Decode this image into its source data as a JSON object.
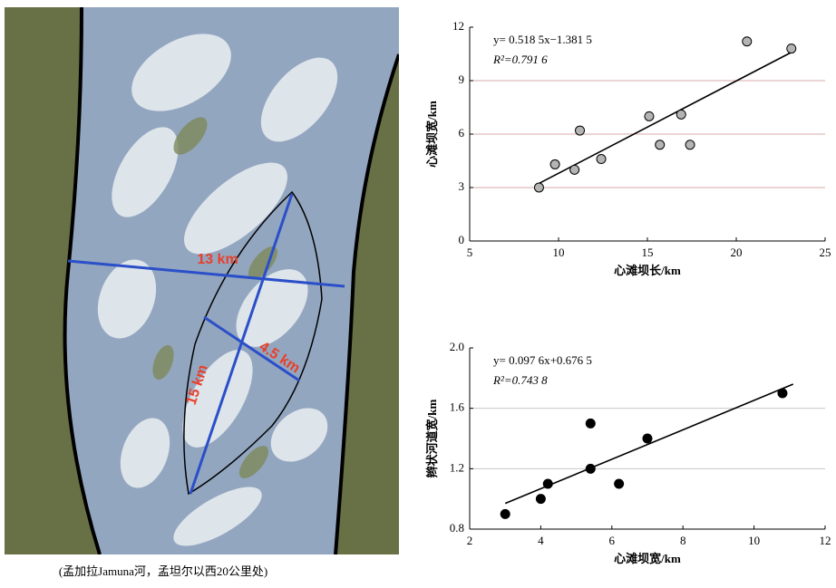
{
  "image": {
    "labels": [
      "13 km",
      "4.5 km",
      "15 km"
    ],
    "caption": "(孟加拉Jamuna河，孟坦尔以西20公里处)"
  },
  "chart_data": [
    {
      "type": "scatter",
      "x_label": "心滩坝长/km",
      "y_label": "心滩坝宽/km",
      "annotations": [
        "y= 0.518 5x−1.381 5",
        "R²=0.791 6"
      ],
      "x": [
        8.9,
        9.8,
        10.9,
        11.2,
        12.4,
        15.1,
        15.7,
        16.9,
        17.4,
        20.6,
        23.1
      ],
      "values": [
        3.0,
        4.3,
        4.0,
        6.2,
        4.6,
        7.0,
        5.4,
        7.1,
        5.4,
        11.2,
        10.8
      ],
      "color": "#b4b4b4",
      "fit_line": {
        "x": [
          8.9,
          23.1
        ],
        "y": [
          3.23,
          10.59
        ]
      },
      "xlim": [
        5,
        25
      ],
      "xticks": [
        5,
        10,
        15,
        20,
        25
      ],
      "ylim": [
        0,
        12
      ],
      "yticks": [
        0,
        3,
        6,
        9,
        12
      ],
      "grid": true,
      "grid_color": "#d8a8a8"
    },
    {
      "type": "scatter",
      "x_label": "心滩坝宽/km",
      "y_label": "辫状河道宽/km",
      "annotations": [
        "y= 0.097 6x+0.676 5",
        "R²=0.743 8"
      ],
      "x": [
        3,
        4,
        4.2,
        5.4,
        5.4,
        6.2,
        7,
        10.8
      ],
      "values": [
        0.9,
        1.0,
        1.1,
        1.5,
        1.2,
        1.1,
        1.4,
        1.7
      ],
      "color": "#000000",
      "fit_line": {
        "x": [
          3,
          11.1
        ],
        "y": [
          0.97,
          1.76
        ]
      },
      "xlim": [
        2,
        12
      ],
      "xticks": [
        2,
        4,
        6,
        8,
        10,
        12
      ],
      "ylim": [
        0.8,
        2.0
      ],
      "yticks": [
        {
          "value": 0.8,
          "label": "0.8"
        },
        {
          "value": 1.2,
          "label": "1.2"
        },
        {
          "value": 1.6,
          "label": "1.6"
        },
        {
          "value": 2.0,
          "label": "2.0"
        }
      ],
      "grid": true,
      "grid_color": "#c8c8c8"
    }
  ]
}
